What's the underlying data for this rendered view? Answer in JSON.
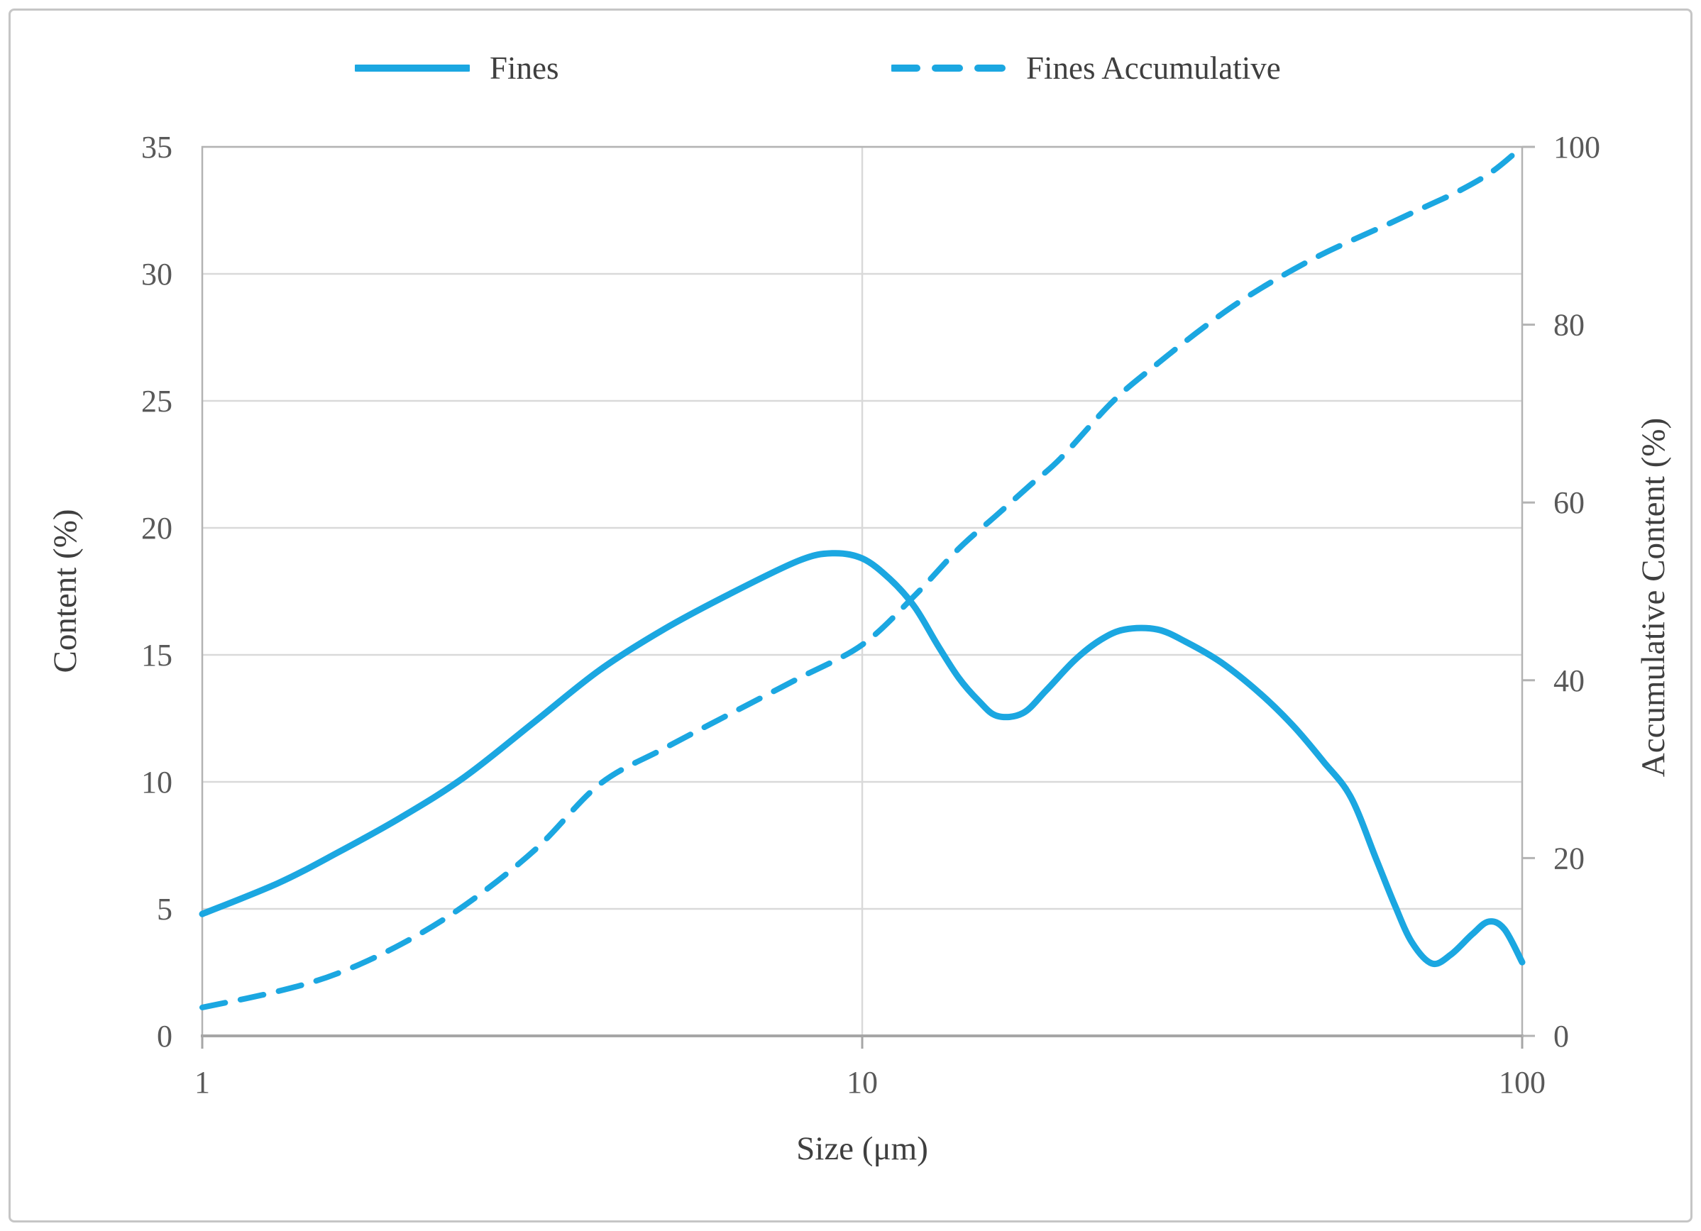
{
  "figure": {
    "kind": "line-chart-figure",
    "background": "#ffffff",
    "border_color": "#c6c6c6"
  },
  "colors": {
    "accent_blue": "#1ba7e1",
    "gridline": "#d9d9d9",
    "axis_line": "#b3b3b3",
    "bottom_axis_line": "#a6a6a6",
    "tick_label_text": "#595959",
    "title_text": "#3f3f3f"
  },
  "legend": {
    "items": [
      {
        "label": "Fines",
        "style": "solid",
        "color": "#1ba7e1"
      },
      {
        "label": "Fines Accumulative",
        "style": "dashed",
        "color": "#1ba7e1"
      }
    ]
  },
  "axes": {
    "x": {
      "title": "Size (μm)",
      "scale": "log",
      "min": 1,
      "max": 100,
      "ticks": [
        "1",
        "10",
        "100"
      ]
    },
    "y_left": {
      "title": "Content (%)",
      "min": 0,
      "max": 35,
      "ticks": [
        "0",
        "5",
        "10",
        "15",
        "20",
        "25",
        "30",
        "35"
      ]
    },
    "y_right": {
      "title": "Accumulative Content (%)",
      "min": 0,
      "max": 100,
      "ticks": [
        "0",
        "20",
        "40",
        "60",
        "80",
        "100"
      ]
    }
  },
  "chart_data": {
    "type": "line",
    "title": "",
    "xlabel": "Size (μm)",
    "x_scale": "log",
    "x_range": [
      1,
      100
    ],
    "x_ticks": [
      1,
      10,
      100
    ],
    "grid": {
      "horizontal": true,
      "vertical_at": [
        10
      ]
    },
    "legend_position": "top",
    "y_left": {
      "label": "Content (%)",
      "range": [
        0,
        35
      ],
      "tick_step": 5
    },
    "y_right": {
      "label": "Accumulative Content (%)",
      "range": [
        0,
        100
      ],
      "tick_step": 20
    },
    "series": [
      {
        "name": "Fines",
        "axis": "left",
        "style": "solid",
        "color": "#1ba7e1",
        "points": [
          [
            1,
            4.8
          ],
          [
            1.3,
            6.0
          ],
          [
            1.6,
            7.2
          ],
          [
            2,
            8.6
          ],
          [
            2.5,
            10.2
          ],
          [
            3.2,
            12.4
          ],
          [
            4,
            14.4
          ],
          [
            5,
            16.0
          ],
          [
            6.3,
            17.4
          ],
          [
            8,
            18.7
          ],
          [
            9,
            19.0
          ],
          [
            10,
            18.8
          ],
          [
            11,
            18.0
          ],
          [
            12,
            16.9
          ],
          [
            13,
            15.4
          ],
          [
            14,
            14.1
          ],
          [
            15,
            13.2
          ],
          [
            16,
            12.6
          ],
          [
            17.5,
            12.7
          ],
          [
            19,
            13.6
          ],
          [
            21,
            14.8
          ],
          [
            23,
            15.6
          ],
          [
            25,
            16.0
          ],
          [
            28,
            16.0
          ],
          [
            31,
            15.5
          ],
          [
            35,
            14.7
          ],
          [
            40,
            13.5
          ],
          [
            45,
            12.2
          ],
          [
            50,
            10.8
          ],
          [
            55,
            9.4
          ],
          [
            60,
            7.0
          ],
          [
            64,
            5.2
          ],
          [
            68,
            3.7
          ],
          [
            73,
            2.85
          ],
          [
            78,
            3.2
          ],
          [
            84,
            4.0
          ],
          [
            89,
            4.5
          ],
          [
            94,
            4.2
          ],
          [
            100,
            2.9
          ]
        ]
      },
      {
        "name": "Fines Accumulative",
        "axis": "right",
        "style": "dashed",
        "color": "#1ba7e1",
        "points": [
          [
            1,
            3.2
          ],
          [
            1.3,
            5.0
          ],
          [
            1.6,
            7.0
          ],
          [
            2,
            10.3
          ],
          [
            2.5,
            14.7
          ],
          [
            3.2,
            21.0
          ],
          [
            4,
            28.3
          ],
          [
            5,
            32.3
          ],
          [
            6.3,
            36.2
          ],
          [
            8,
            40.2
          ],
          [
            10,
            44.0
          ],
          [
            12,
            49.5
          ],
          [
            14,
            54.8
          ],
          [
            16,
            58.6
          ],
          [
            18,
            62.0
          ],
          [
            20,
            65.0
          ],
          [
            24,
            71.4
          ],
          [
            28,
            75.6
          ],
          [
            32,
            79.0
          ],
          [
            36,
            81.8
          ],
          [
            40,
            84.0
          ],
          [
            45,
            86.2
          ],
          [
            50,
            88.0
          ],
          [
            56,
            89.7
          ],
          [
            63,
            91.4
          ],
          [
            71,
            93.2
          ],
          [
            80,
            95.0
          ],
          [
            90,
            97.2
          ],
          [
            100,
            100
          ]
        ]
      }
    ]
  }
}
